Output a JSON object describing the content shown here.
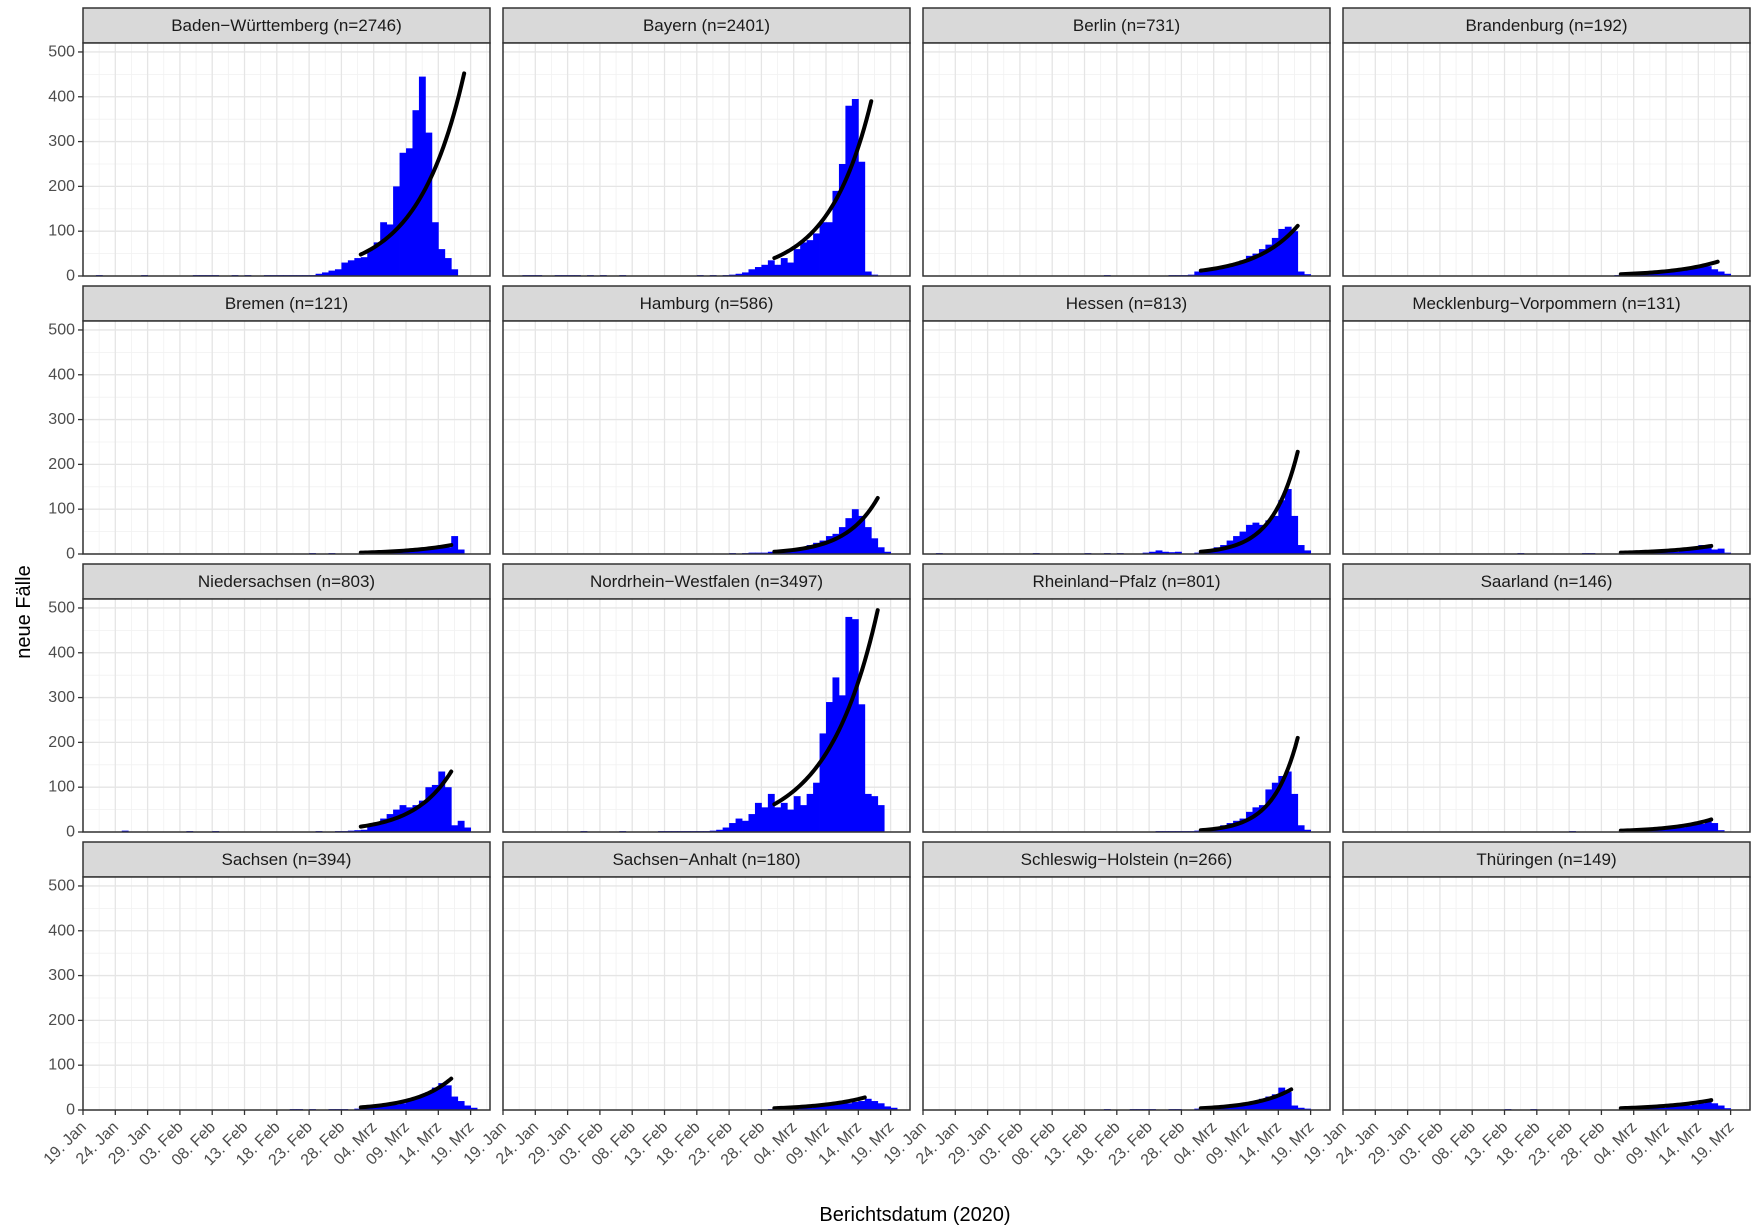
{
  "colors": {
    "bar": "#0000ff",
    "fit_line": "#000000",
    "strip": "#d9d9d9",
    "panel_border": "#333333",
    "grid": "#ebebeb"
  },
  "chart_data": {
    "type": "bar",
    "xlabel": "Berichtsdatum (2020)",
    "ylabel": "neue Fälle",
    "ylim": [
      0,
      520
    ],
    "yticks": [
      0,
      100,
      200,
      300,
      400,
      500
    ],
    "xlim": [
      "2020-01-19",
      "2020-03-22"
    ],
    "x_tick_dates": [
      "2020-01-19",
      "2020-01-24",
      "2020-01-29",
      "2020-02-03",
      "2020-02-08",
      "2020-02-13",
      "2020-02-18",
      "2020-02-23",
      "2020-02-28",
      "2020-03-04",
      "2020-03-09",
      "2020-03-14",
      "2020-03-19"
    ],
    "x_tick_labels": [
      "19. Jan",
      "24. Jan",
      "29. Jan",
      "03. Feb",
      "08. Feb",
      "13. Feb",
      "18. Feb",
      "23. Feb",
      "28. Feb",
      "04. Mrz",
      "09. Mrz",
      "14. Mrz",
      "19. Mrz"
    ],
    "grid": true,
    "facets": [
      {
        "title": "Baden−Württemberg (n=2746)",
        "bar_start": "2020-02-25",
        "values": [
          8,
          12,
          15,
          30,
          35,
          40,
          42,
          60,
          75,
          120,
          115,
          200,
          275,
          285,
          370,
          445,
          320,
          120,
          60,
          40,
          15
        ],
        "sparse": [
          [
            "2020-01-21",
            2
          ],
          [
            "2020-01-28",
            2
          ],
          [
            "2020-02-05",
            2
          ],
          [
            "2020-02-06",
            2
          ],
          [
            "2020-02-07",
            2
          ],
          [
            "2020-02-08",
            2
          ],
          [
            "2020-02-11",
            2
          ],
          [
            "2020-02-13",
            2
          ],
          [
            "2020-02-16",
            2
          ],
          [
            "2020-02-17",
            2
          ],
          [
            "2020-02-18",
            2
          ],
          [
            "2020-02-19",
            2
          ],
          [
            "2020-02-20",
            2
          ],
          [
            "2020-02-21",
            2
          ],
          [
            "2020-02-22",
            2
          ],
          [
            "2020-02-23",
            2
          ],
          [
            "2020-02-24",
            5
          ]
        ],
        "fit": {
          "start": "2020-03-02",
          "end": "2020-03-18",
          "y_start": 48,
          "y_end": 452
        }
      },
      {
        "title": "Bayern (n=2401)",
        "bar_start": "2020-02-26",
        "values": [
          15,
          20,
          25,
          35,
          25,
          40,
          30,
          60,
          75,
          80,
          95,
          120,
          120,
          190,
          250,
          380,
          395,
          255,
          10,
          3
        ],
        "sparse": [
          [
            "2020-01-22",
            2
          ],
          [
            "2020-01-23",
            2
          ],
          [
            "2020-01-24",
            2
          ],
          [
            "2020-01-27",
            2
          ],
          [
            "2020-01-28",
            2
          ],
          [
            "2020-01-29",
            2
          ],
          [
            "2020-01-30",
            2
          ],
          [
            "2020-02-01",
            2
          ],
          [
            "2020-02-03",
            2
          ],
          [
            "2020-02-06",
            2
          ],
          [
            "2020-02-18",
            2
          ],
          [
            "2020-02-20",
            2
          ],
          [
            "2020-02-22",
            2
          ],
          [
            "2020-02-23",
            3
          ],
          [
            "2020-02-24",
            5
          ],
          [
            "2020-02-25",
            8
          ]
        ],
        "fit": {
          "start": "2020-03-01",
          "end": "2020-03-16",
          "y_start": 40,
          "y_end": 390
        }
      },
      {
        "title": "Berlin (n=731)",
        "bar_start": "2020-03-01",
        "values": [
          10,
          12,
          15,
          18,
          20,
          25,
          30,
          35,
          45,
          50,
          60,
          70,
          85,
          105,
          110,
          100,
          10,
          4
        ],
        "sparse": [
          [
            "2020-02-16",
            2
          ],
          [
            "2020-02-26",
            2
          ],
          [
            "2020-02-27",
            2
          ],
          [
            "2020-02-28",
            2
          ],
          [
            "2020-02-29",
            3
          ]
        ],
        "fit": {
          "start": "2020-03-02",
          "end": "2020-03-17",
          "y_start": 12,
          "y_end": 112
        }
      },
      {
        "title": "Brandenburg (n=192)",
        "bar_start": "2020-03-04",
        "values": [
          3,
          5,
          5,
          7,
          8,
          8,
          10,
          12,
          15,
          18,
          20,
          22,
          15,
          10,
          5
        ],
        "sparse": [
          [
            "2020-03-01",
            2
          ],
          [
            "2020-03-02",
            2
          ],
          [
            "2020-03-03",
            2
          ]
        ],
        "fit": {
          "start": "2020-03-02",
          "end": "2020-03-17",
          "y_start": 4,
          "y_end": 32
        }
      },
      {
        "title": "Bremen (n=121)",
        "bar_start": "2020-03-04",
        "values": [
          3,
          3,
          5,
          5,
          5,
          8,
          8,
          10,
          12,
          15,
          20,
          15,
          40,
          10
        ],
        "sparse": [
          [
            "2020-02-23",
            2
          ],
          [
            "2020-02-26",
            2
          ],
          [
            "2020-03-02",
            2
          ],
          [
            "2020-03-03",
            2
          ]
        ],
        "fit": {
          "start": "2020-03-02",
          "end": "2020-03-16",
          "y_start": 3,
          "y_end": 20
        }
      },
      {
        "title": "Hamburg (n=586)",
        "bar_start": "2020-02-29",
        "values": [
          5,
          5,
          8,
          10,
          12,
          15,
          20,
          25,
          30,
          40,
          45,
          60,
          80,
          100,
          85,
          60,
          35,
          15,
          5
        ],
        "sparse": [
          [
            "2020-02-23",
            2
          ],
          [
            "2020-02-25",
            2
          ],
          [
            "2020-02-26",
            3
          ],
          [
            "2020-02-27",
            3
          ],
          [
            "2020-02-28",
            3
          ]
        ],
        "fit": {
          "start": "2020-03-01",
          "end": "2020-03-17",
          "y_start": 5,
          "y_end": 125
        }
      },
      {
        "title": "Hessen (n=813)",
        "bar_start": "2020-03-03",
        "values": [
          10,
          15,
          20,
          30,
          40,
          50,
          65,
          70,
          65,
          75,
          85,
          120,
          145,
          85,
          20,
          8
        ],
        "sparse": [
          [
            "2020-01-21",
            2
          ],
          [
            "2020-02-05",
            2
          ],
          [
            "2020-02-13",
            2
          ],
          [
            "2020-02-16",
            2
          ],
          [
            "2020-02-18",
            2
          ],
          [
            "2020-02-22",
            3
          ],
          [
            "2020-02-23",
            5
          ],
          [
            "2020-02-24",
            8
          ],
          [
            "2020-02-25",
            5
          ],
          [
            "2020-02-26",
            4
          ],
          [
            "2020-02-27",
            5
          ],
          [
            "2020-03-01",
            3
          ],
          [
            "2020-03-02",
            5
          ]
        ],
        "fit": {
          "start": "2020-03-02",
          "end": "2020-03-17",
          "y_start": 5,
          "y_end": 228
        }
      },
      {
        "title": "Mecklenburg−Vorpommern (n=131)",
        "bar_start": "2020-03-05",
        "values": [
          3,
          3,
          5,
          5,
          5,
          5,
          8,
          10,
          12,
          20,
          15,
          10,
          12,
          3
        ],
        "sparse": [
          [
            "2020-02-15",
            2
          ],
          [
            "2020-02-25",
            2
          ],
          [
            "2020-02-26",
            2
          ],
          [
            "2020-03-02",
            2
          ],
          [
            "2020-03-04",
            2
          ]
        ],
        "fit": {
          "start": "2020-03-02",
          "end": "2020-03-16",
          "y_start": 3,
          "y_end": 18
        }
      },
      {
        "title": "Niedersachsen (n=803)",
        "bar_start": "2020-03-03",
        "values": [
          15,
          20,
          30,
          40,
          50,
          60,
          55,
          60,
          70,
          100,
          105,
          135,
          100,
          15,
          25,
          10
        ],
        "sparse": [
          [
            "2020-01-25",
            3
          ],
          [
            "2020-02-04",
            2
          ],
          [
            "2020-02-08",
            2
          ],
          [
            "2020-02-24",
            2
          ],
          [
            "2020-02-27",
            2
          ],
          [
            "2020-02-28",
            2
          ],
          [
            "2020-02-29",
            3
          ],
          [
            "2020-03-01",
            4
          ],
          [
            "2020-03-02",
            5
          ]
        ],
        "fit": {
          "start": "2020-03-02",
          "end": "2020-03-16",
          "y_start": 12,
          "y_end": 135
        }
      },
      {
        "title": "Nordrhein−Westfalen (n=3497)",
        "bar_start": "2020-02-22",
        "values": [
          10,
          20,
          30,
          25,
          40,
          65,
          55,
          85,
          55,
          65,
          50,
          80,
          60,
          85,
          110,
          220,
          290,
          345,
          305,
          480,
          475,
          285,
          85,
          80,
          60
        ],
        "sparse": [
          [
            "2020-01-31",
            2
          ],
          [
            "2020-02-06",
            2
          ],
          [
            "2020-02-12",
            2
          ],
          [
            "2020-02-13",
            2
          ],
          [
            "2020-02-14",
            2
          ],
          [
            "2020-02-15",
            2
          ],
          [
            "2020-02-16",
            2
          ],
          [
            "2020-02-17",
            2
          ],
          [
            "2020-02-18",
            2
          ],
          [
            "2020-02-19",
            2
          ],
          [
            "2020-02-20",
            3
          ],
          [
            "2020-02-21",
            5
          ]
        ],
        "fit": {
          "start": "2020-03-01",
          "end": "2020-03-17",
          "y_start": 62,
          "y_end": 495
        }
      },
      {
        "title": "Rheinland−Pfalz (n=801)",
        "bar_start": "2020-03-03",
        "values": [
          5,
          10,
          15,
          20,
          25,
          30,
          45,
          55,
          60,
          95,
          110,
          125,
          135,
          85,
          15,
          5
        ],
        "sparse": [
          [
            "2020-02-24",
            2
          ],
          [
            "2020-02-25",
            2
          ],
          [
            "2020-02-26",
            2
          ],
          [
            "2020-02-27",
            2
          ],
          [
            "2020-02-28",
            2
          ],
          [
            "2020-02-29",
            2
          ],
          [
            "2020-03-01",
            3
          ],
          [
            "2020-03-02",
            4
          ]
        ],
        "fit": {
          "start": "2020-03-02",
          "end": "2020-03-17",
          "y_start": 4,
          "y_end": 210
        }
      },
      {
        "title": "Saarland (n=146)",
        "bar_start": "2020-03-04",
        "values": [
          3,
          5,
          5,
          5,
          8,
          10,
          10,
          10,
          15,
          18,
          18,
          25,
          20,
          4
        ],
        "sparse": [
          [
            "2020-02-23",
            2
          ],
          [
            "2020-03-02",
            2
          ],
          [
            "2020-03-03",
            2
          ]
        ],
        "fit": {
          "start": "2020-03-02",
          "end": "2020-03-16",
          "y_start": 3,
          "y_end": 28
        }
      },
      {
        "title": "Sachsen (n=394)",
        "bar_start": "2020-03-03",
        "values": [
          5,
          8,
          10,
          10,
          12,
          15,
          20,
          25,
          30,
          40,
          50,
          60,
          55,
          30,
          20,
          10,
          5
        ],
        "sparse": [
          [
            "2020-02-20",
            2
          ],
          [
            "2020-02-21",
            2
          ],
          [
            "2020-02-23",
            2
          ],
          [
            "2020-02-26",
            2
          ],
          [
            "2020-02-27",
            2
          ],
          [
            "2020-02-28",
            2
          ],
          [
            "2020-03-01",
            3
          ],
          [
            "2020-03-02",
            4
          ]
        ],
        "fit": {
          "start": "2020-03-02",
          "end": "2020-03-16",
          "y_start": 6,
          "y_end": 70
        }
      },
      {
        "title": "Sachsen−Anhalt (n=180)",
        "bar_start": "2020-03-04",
        "values": [
          3,
          5,
          5,
          8,
          10,
          10,
          12,
          15,
          15,
          18,
          20,
          25,
          20,
          15,
          8,
          5
        ],
        "sparse": [
          [
            "2020-02-29",
            2
          ],
          [
            "2020-03-01",
            2
          ],
          [
            "2020-03-02",
            2
          ],
          [
            "2020-03-03",
            2
          ]
        ],
        "fit": {
          "start": "2020-03-01",
          "end": "2020-03-15",
          "y_start": 4,
          "y_end": 28
        }
      },
      {
        "title": "Schleswig−Holstein (n=266)",
        "bar_start": "2020-03-03",
        "values": [
          5,
          8,
          8,
          10,
          10,
          12,
          15,
          20,
          25,
          30,
          35,
          50,
          40,
          10,
          5,
          3
        ],
        "sparse": [
          [
            "2020-02-16",
            2
          ],
          [
            "2020-02-20",
            2
          ],
          [
            "2020-02-21",
            2
          ],
          [
            "2020-02-22",
            2
          ],
          [
            "2020-02-23",
            2
          ],
          [
            "2020-02-26",
            2
          ],
          [
            "2020-02-27",
            2
          ],
          [
            "2020-03-01",
            3
          ],
          [
            "2020-03-02",
            3
          ]
        ],
        "fit": {
          "start": "2020-03-02",
          "end": "2020-03-16",
          "y_start": 4,
          "y_end": 46
        }
      },
      {
        "title": "Thüringen (n=149)",
        "bar_start": "2020-03-04",
        "values": [
          3,
          3,
          5,
          5,
          5,
          8,
          8,
          10,
          10,
          12,
          15,
          20,
          15,
          10,
          4
        ],
        "sparse": [
          [
            "2020-02-13",
            2
          ],
          [
            "2020-02-17",
            2
          ],
          [
            "2020-03-02",
            2
          ],
          [
            "2020-03-03",
            2
          ]
        ],
        "fit": {
          "start": "2020-03-02",
          "end": "2020-03-16",
          "y_start": 4,
          "y_end": 22
        }
      }
    ]
  }
}
